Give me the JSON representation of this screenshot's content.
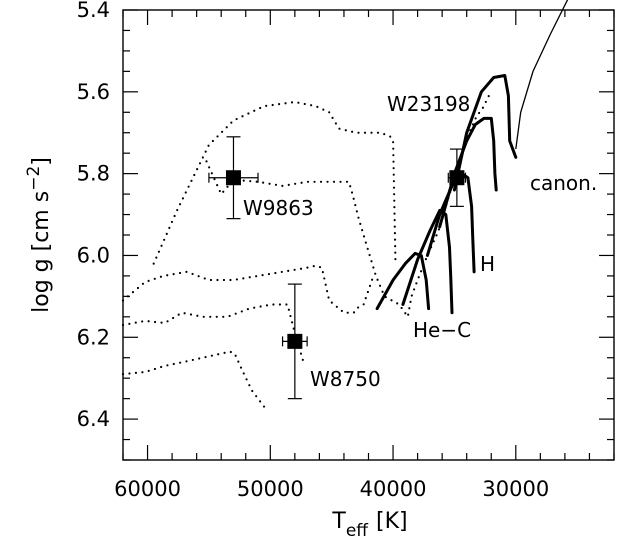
{
  "chart_data": {
    "type": "scatter",
    "title": "",
    "xlabel": {
      "main": "T",
      "sub": "eff",
      "unit": "[K]"
    },
    "ylabel": {
      "main": "log g  [cm s",
      "sup": "−2",
      "close": "]"
    },
    "xlim": [
      62000,
      22000
    ],
    "ylim": [
      6.5,
      5.4
    ],
    "x_ticks": [
      60000,
      50000,
      40000,
      30000
    ],
    "x_tick_labels": [
      "60000",
      "50000",
      "40000",
      "30000"
    ],
    "y_ticks": [
      5.4,
      5.6,
      5.8,
      6.0,
      6.2,
      6.4
    ],
    "y_tick_labels": [
      "5.4",
      "5.6",
      "5.8",
      "6.0",
      "6.2",
      "6.4"
    ],
    "grid": false,
    "stars": [
      {
        "name": "W9863",
        "teff": 53000,
        "teff_err": 2000,
        "logg": 5.81,
        "logg_err": 0.1
      },
      {
        "name": "W8750",
        "teff": 48000,
        "teff_err": 1000,
        "logg": 6.21,
        "logg_err": 0.14
      },
      {
        "name": "W23198",
        "teff": 34800,
        "teff_err": 700,
        "logg": 5.81,
        "logg_err": 0.07
      }
    ],
    "track_labels": [
      "canon.",
      "H",
      "He−C"
    ],
    "tracks": [
      {
        "style": "thin",
        "points": [
          [
            30000,
            5.74
          ],
          [
            29600,
            5.65
          ],
          [
            28600,
            5.55
          ],
          [
            27200,
            5.46
          ],
          [
            25700,
            5.37
          ]
        ]
      },
      {
        "style": "thick",
        "points": [
          [
            35000,
            5.84
          ],
          [
            34000,
            5.7
          ],
          [
            32800,
            5.6
          ],
          [
            31800,
            5.565
          ],
          [
            30900,
            5.56
          ],
          [
            30600,
            5.61
          ],
          [
            30500,
            5.72
          ],
          [
            30000,
            5.76
          ]
        ]
      },
      {
        "style": "thick",
        "points": [
          [
            36200,
            5.93
          ],
          [
            35000,
            5.8
          ],
          [
            34000,
            5.72
          ],
          [
            33300,
            5.68
          ],
          [
            32600,
            5.665
          ],
          [
            32000,
            5.665
          ],
          [
            31800,
            5.72
          ],
          [
            31700,
            5.8
          ],
          [
            31600,
            5.84
          ]
        ]
      },
      {
        "style": "thick",
        "points": [
          [
            37200,
            6.0
          ],
          [
            36200,
            5.9
          ],
          [
            35200,
            5.83
          ],
          [
            34400,
            5.8
          ],
          [
            33900,
            5.81
          ],
          [
            33600,
            5.88
          ],
          [
            33500,
            5.96
          ],
          [
            33400,
            6.04
          ]
        ]
      },
      {
        "style": "thick",
        "points": [
          [
            39200,
            6.12
          ],
          [
            38000,
            6.01
          ],
          [
            37000,
            5.94
          ],
          [
            36200,
            5.89
          ],
          [
            35700,
            5.9
          ],
          [
            35400,
            5.98
          ],
          [
            35300,
            6.05
          ],
          [
            35200,
            6.14
          ]
        ]
      },
      {
        "style": "thick",
        "points": [
          [
            41300,
            6.13
          ],
          [
            40000,
            6.06
          ],
          [
            39000,
            6.02
          ],
          [
            38200,
            5.995
          ],
          [
            37700,
            6.0
          ],
          [
            37300,
            6.06
          ],
          [
            37100,
            6.13
          ]
        ]
      },
      {
        "style": "dotted",
        "points": [
          [
            59500,
            6.02
          ],
          [
            57600,
            5.89
          ],
          [
            55000,
            5.73
          ],
          [
            53000,
            5.67
          ],
          [
            50500,
            5.635
          ],
          [
            48000,
            5.625
          ],
          [
            46300,
            5.635
          ],
          [
            45200,
            5.65
          ],
          [
            44400,
            5.69
          ],
          [
            43000,
            5.7
          ],
          [
            41000,
            5.7
          ],
          [
            40200,
            5.71
          ],
          [
            40000,
            5.72
          ],
          [
            39800,
            6.02
          ]
        ]
      },
      {
        "style": "dotted",
        "points": [
          [
            55200,
            5.77
          ],
          [
            54000,
            5.85
          ],
          [
            53000,
            5.815
          ],
          [
            51000,
            5.82
          ],
          [
            49000,
            5.83
          ],
          [
            47000,
            5.82
          ],
          [
            45000,
            5.82
          ],
          [
            43600,
            5.82
          ],
          [
            43300,
            5.85
          ],
          [
            42800,
            5.91
          ],
          [
            42300,
            5.96
          ],
          [
            41400,
            6.05
          ],
          [
            40700,
            6.1
          ],
          [
            39500,
            6.12
          ],
          [
            38800,
            6.15
          ],
          [
            38500,
            6.1
          ],
          [
            38000,
            6.06
          ],
          [
            37200,
            6.0
          ],
          [
            36300,
            5.94
          ],
          [
            35600,
            5.87
          ],
          [
            34900,
            5.8
          ],
          [
            34300,
            5.74
          ],
          [
            33800,
            5.7
          ],
          [
            33200,
            5.66
          ],
          [
            32700,
            5.64
          ],
          [
            32200,
            5.61
          ]
        ]
      },
      {
        "style": "dotted",
        "points": [
          [
            62000,
            6.11
          ],
          [
            60200,
            6.065
          ],
          [
            58700,
            6.05
          ],
          [
            56800,
            6.04
          ],
          [
            55000,
            6.06
          ],
          [
            53000,
            6.06
          ],
          [
            51000,
            6.05
          ],
          [
            49000,
            6.04
          ],
          [
            47000,
            6.03
          ],
          [
            46300,
            6.025
          ],
          [
            45800,
            6.03
          ],
          [
            45200,
            6.11
          ],
          [
            44000,
            6.14
          ],
          [
            43200,
            6.14
          ],
          [
            43000,
            6.13
          ],
          [
            42400,
            6.12
          ],
          [
            41600,
            6.05
          ]
        ]
      },
      {
        "style": "dotted",
        "points": [
          [
            62000,
            6.17
          ],
          [
            60200,
            6.16
          ],
          [
            58600,
            6.165
          ],
          [
            57200,
            6.14
          ],
          [
            55500,
            6.15
          ],
          [
            53500,
            6.15
          ],
          [
            51700,
            6.13
          ],
          [
            49900,
            6.12
          ],
          [
            48800,
            6.12
          ],
          [
            48600,
            6.12
          ],
          [
            48000,
            6.19
          ],
          [
            47300,
            6.26
          ]
        ]
      },
      {
        "style": "dotted",
        "points": [
          [
            62000,
            6.29
          ],
          [
            60200,
            6.285
          ],
          [
            58600,
            6.27
          ],
          [
            57000,
            6.26
          ],
          [
            55500,
            6.25
          ],
          [
            54000,
            6.24
          ],
          [
            53300,
            6.235
          ],
          [
            52900,
            6.24
          ],
          [
            52300,
            6.28
          ],
          [
            51500,
            6.33
          ],
          [
            50500,
            6.37
          ]
        ]
      }
    ]
  }
}
